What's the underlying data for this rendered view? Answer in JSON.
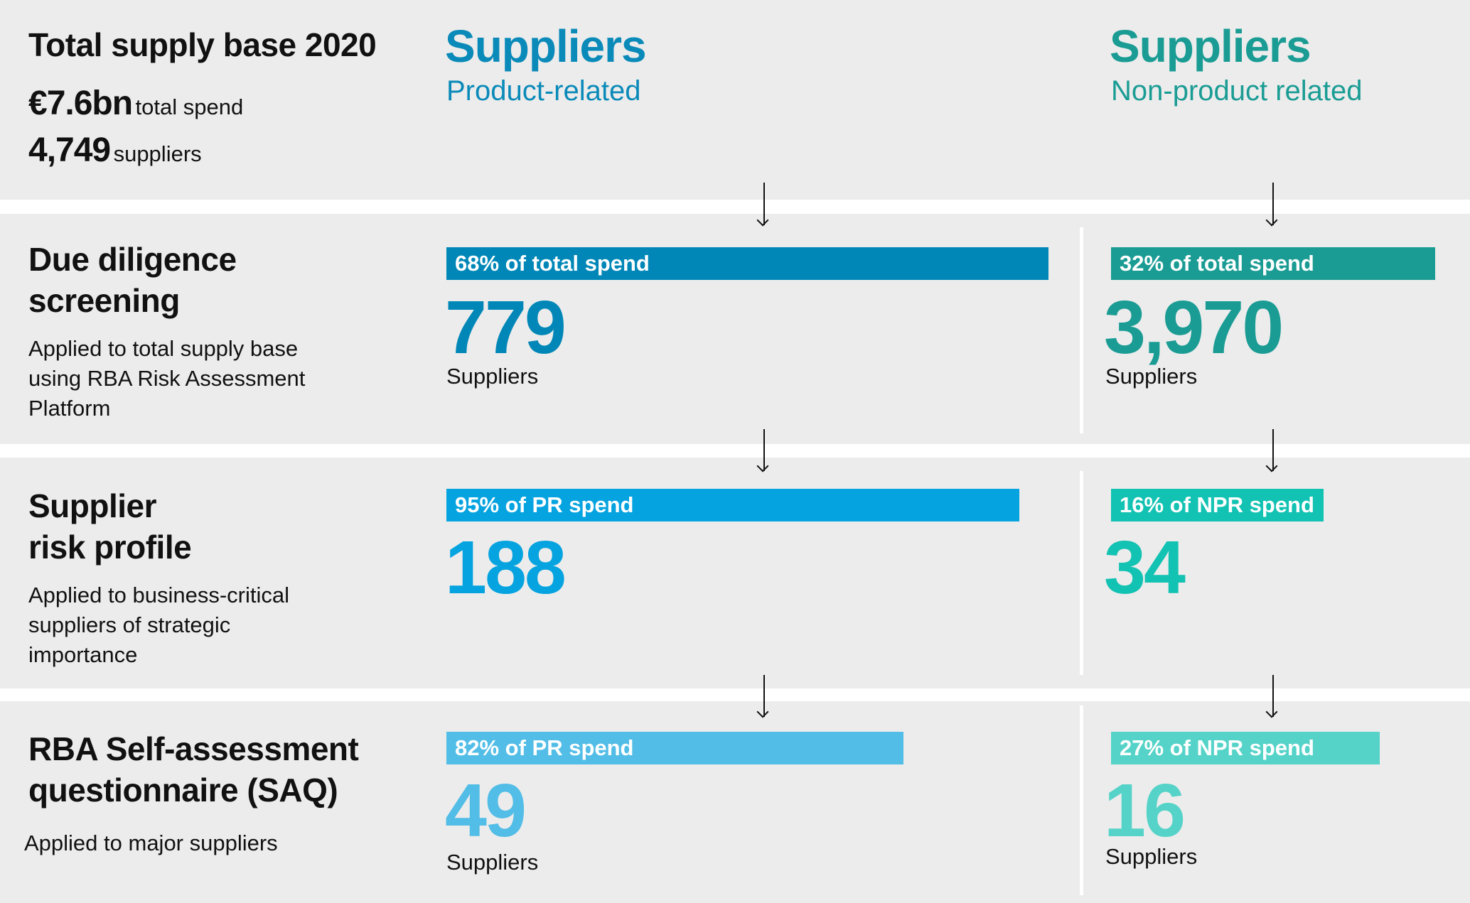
{
  "summary": {
    "title": "Total supply base 2020",
    "spend_value": "€7.6bn",
    "spend_label": "total spend",
    "suppliers_value": "4,749",
    "suppliers_label": "suppliers"
  },
  "columns": {
    "product": {
      "title": "Suppliers",
      "subtitle": "Product-related",
      "color": "#0a8ab9"
    },
    "nonproduct": {
      "title": "Suppliers",
      "subtitle": "Non-product related",
      "color": "#1a9c94"
    }
  },
  "stages": [
    {
      "title_line1": "Due diligence",
      "title_line2": "screening",
      "description": "Applied to total supply base using RBA Risk Assessment Platform",
      "product": {
        "bar_label": "68% of total spend",
        "percent": 68,
        "value": "779",
        "unit": "Suppliers",
        "color": "#0087b7"
      },
      "nonproduct": {
        "bar_label": "32% of total spend",
        "percent": 32,
        "value": "3,970",
        "unit": "Suppliers",
        "color": "#1a9c94"
      }
    },
    {
      "title_line1": "Supplier",
      "title_line2": "risk profile",
      "description": "Applied to business-critical suppliers of strategic importance",
      "product": {
        "bar_label": "95% of PR spend",
        "percent": 95,
        "value": "188",
        "color": "#05a3df"
      },
      "nonproduct": {
        "bar_label": "16% of NPR spend",
        "percent": 16,
        "value": "34",
        "color": "#12c2b2"
      }
    },
    {
      "title_line1": "RBA Self-assessment",
      "title_line2": "questionnaire (SAQ)",
      "description": "Applied to major suppliers",
      "product": {
        "bar_label": "82% of PR spend",
        "percent": 82,
        "value": "49",
        "unit": "Suppliers",
        "color": "#52bde6"
      },
      "nonproduct": {
        "bar_label": "27% of NPR spend",
        "percent": 27,
        "value": "16",
        "unit": "Suppliers",
        "color": "#55d3c8"
      }
    }
  ]
}
